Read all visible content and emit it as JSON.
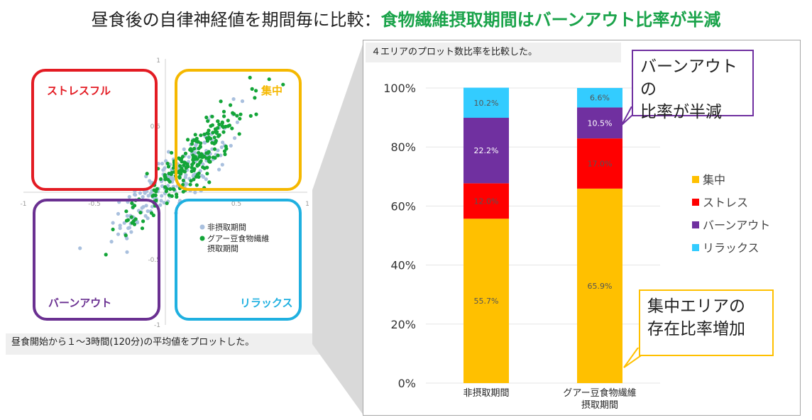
{
  "title": {
    "main": "昼食後の自律神経値を期間毎に比較：",
    "emphasis": "食物繊維摂取期間はバーンアウト比率が半減"
  },
  "scatter": {
    "quadrants": {
      "top_left": "ストレスフル",
      "top_right": "集中",
      "bottom_left": "バーンアウト",
      "bottom_right": "リラックス"
    },
    "quadrant_colors": {
      "top_left": "#e31b23",
      "top_right": "#f5b800",
      "bottom_left": "#6a3091",
      "bottom_right": "#1fb0e0"
    },
    "x_ticks": [
      "-1",
      "-0.5",
      "0.5",
      "1"
    ],
    "y_ticks": [
      "1",
      "0.5",
      "-0.5",
      "-1"
    ],
    "legend": [
      "非摂取期間",
      "グアー豆食物繊維\n摂取期間"
    ],
    "series_colors": [
      "#a9c0de",
      "#13a538"
    ],
    "caption": "昼食開始から１～3時間(120分)の平均値をプロットした。"
  },
  "chart_header": "４エリアのプロット数比率を比較した。",
  "chart_data": {
    "type": "bar",
    "stacked": true,
    "categories": [
      "非摂取期間",
      "グアー豆食物繊維\n摂取期間"
    ],
    "series": [
      {
        "name": "集中",
        "color": "#ffc000",
        "values": [
          55.7,
          65.9
        ]
      },
      {
        "name": "ストレス",
        "color": "#ff0000",
        "values": [
          12.0,
          17.0
        ]
      },
      {
        "name": "バーンアウト",
        "color": "#7030a0",
        "values": [
          22.2,
          10.5
        ]
      },
      {
        "name": "リラックス",
        "color": "#33ccff",
        "values": [
          10.2,
          6.6
        ]
      }
    ],
    "data_labels": [
      [
        "55.7%",
        "12.0%",
        "22.2%",
        "10.2%"
      ],
      [
        "65.9%",
        "17.0%",
        "10.5%",
        "6.6%"
      ]
    ],
    "ylim": [
      0,
      100
    ],
    "y_ticks": [
      "0%",
      "20%",
      "40%",
      "60%",
      "80%",
      "100%"
    ],
    "legend_position": "right"
  },
  "callouts": {
    "burnout": "バーンアウトの\n比率が半減",
    "focus": "集中エリアの\n存在比率増加"
  }
}
